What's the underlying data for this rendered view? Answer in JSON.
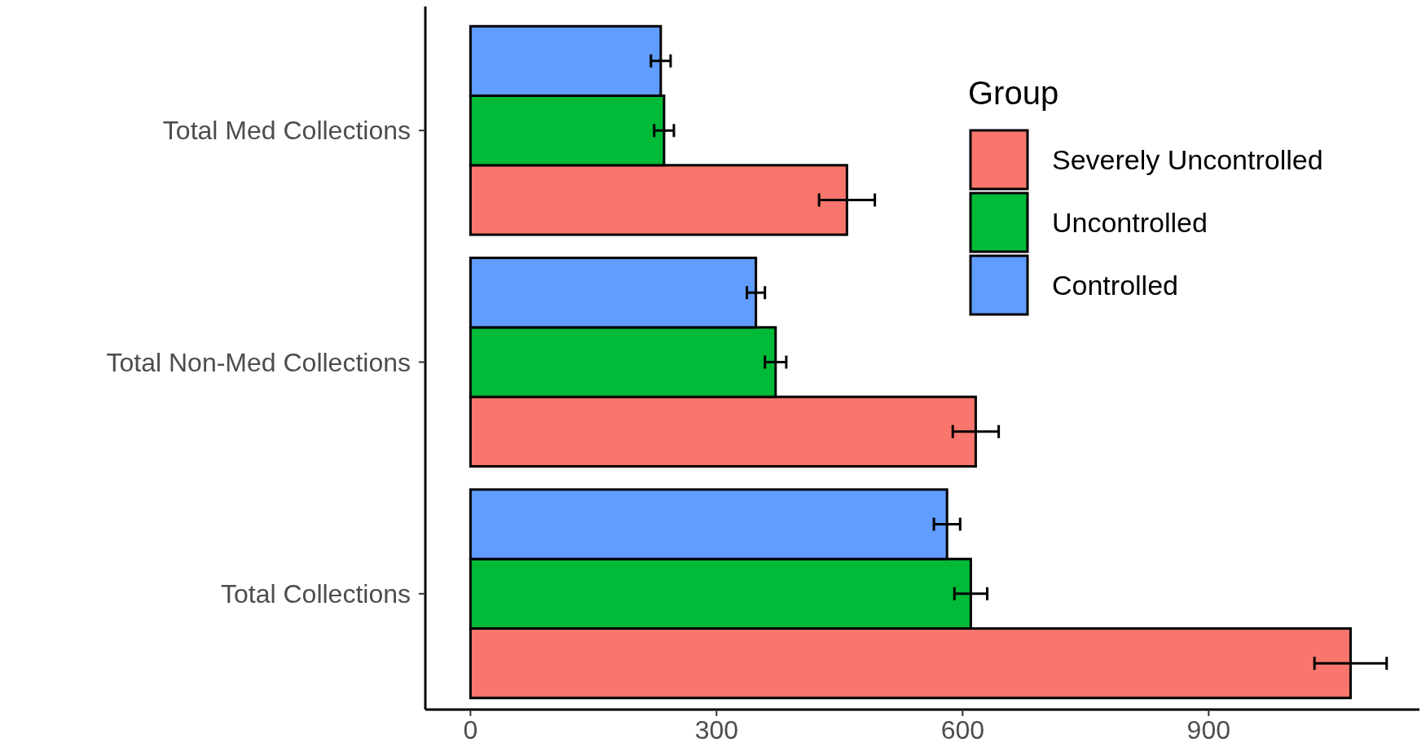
{
  "chart_data": {
    "type": "bar",
    "orientation": "horizontal",
    "categories": [
      "Total Med Collections",
      "Total Non-Med Collections",
      "Total Collections"
    ],
    "series": [
      {
        "name": "Severely Uncontrolled",
        "color": "#f8766d",
        "values": [
          459,
          616,
          1073
        ],
        "errors": [
          34,
          28,
          44
        ]
      },
      {
        "name": "Uncontrolled",
        "color": "#00ba38",
        "values": [
          236,
          372,
          610
        ],
        "errors": [
          12,
          13,
          20
        ]
      },
      {
        "name": "Controlled",
        "color": "#619cff",
        "values": [
          232,
          348,
          581
        ],
        "errors": [
          12,
          11,
          16
        ]
      }
    ],
    "xlim": [
      -55,
      1157
    ],
    "xticks": [
      0,
      300,
      600,
      900
    ],
    "legend_title": "Group",
    "legend": "top right",
    "grid": false
  }
}
